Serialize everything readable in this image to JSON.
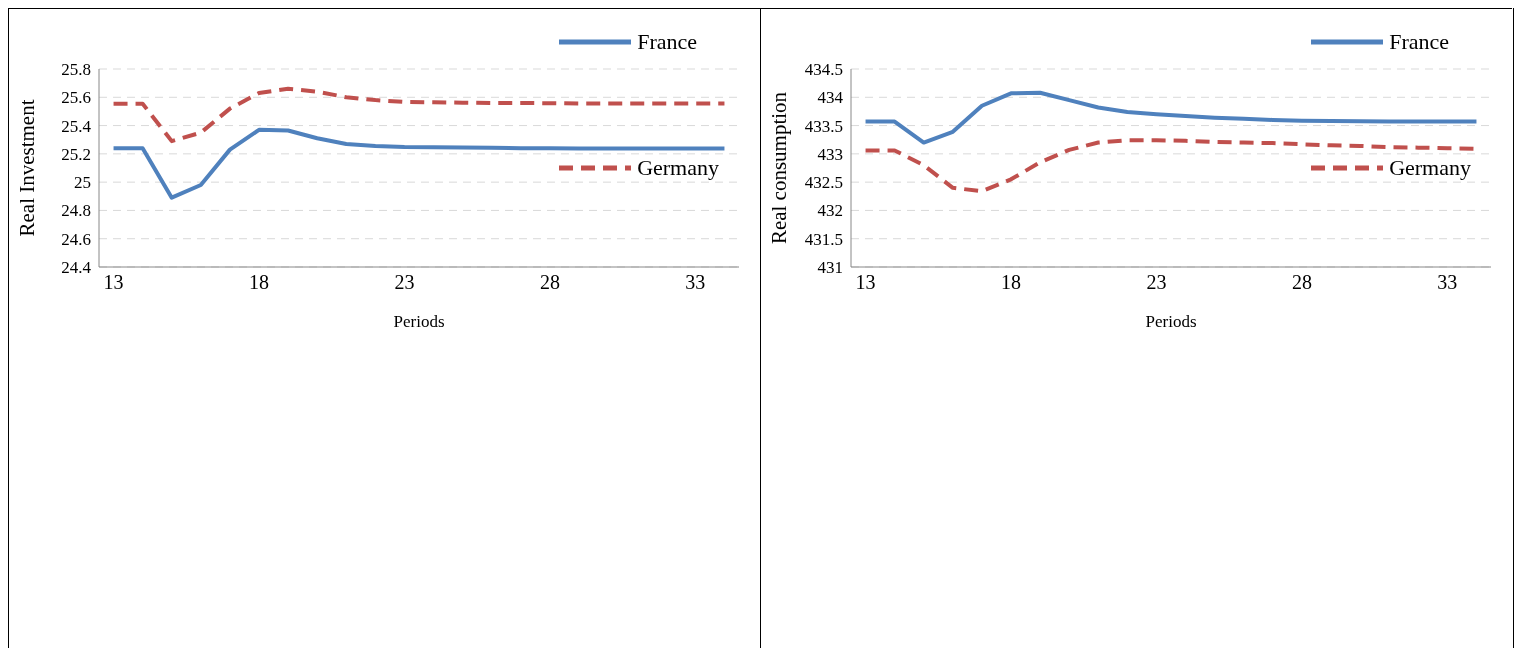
{
  "chart_data": [
    {
      "type": "line",
      "xlabel": "Periods",
      "ylabel": "Real Investment",
      "x": [
        13,
        14,
        15,
        16,
        17,
        18,
        19,
        20,
        21,
        22,
        23,
        24,
        25,
        26,
        27,
        28,
        29,
        30,
        31,
        32,
        33,
        34
      ],
      "xlim": [
        12.5,
        34.5
      ],
      "xticks": [
        13,
        18,
        23,
        28,
        33
      ],
      "ylim": [
        24.4,
        25.8
      ],
      "yticks": [
        24.4,
        24.6,
        24.8,
        25,
        25.2,
        25.4,
        25.6,
        25.8
      ],
      "grid": "y",
      "legend": "right",
      "marker": "none",
      "series": [
        {
          "name": "France",
          "color": "#4f81bd",
          "line_style": "solid",
          "values": [
            25.24,
            25.24,
            24.89,
            24.98,
            25.23,
            25.37,
            25.365,
            25.31,
            25.27,
            25.255,
            25.248,
            25.247,
            25.245,
            25.243,
            25.24,
            25.24,
            25.237,
            25.237,
            25.237,
            25.237,
            25.237,
            25.237
          ]
        },
        {
          "name": "Germany",
          "color": "#c0504d",
          "line_style": "dashed",
          "values": [
            25.555,
            25.555,
            25.29,
            25.35,
            25.52,
            25.63,
            25.66,
            25.64,
            25.6,
            25.58,
            25.567,
            25.565,
            25.562,
            25.56,
            25.56,
            25.558,
            25.556,
            25.556,
            25.556,
            25.556,
            25.556,
            25.556
          ]
        }
      ]
    },
    {
      "type": "line",
      "xlabel": "Periods",
      "ylabel": "Real consumption",
      "x": [
        13,
        14,
        15,
        16,
        17,
        18,
        19,
        20,
        21,
        22,
        23,
        24,
        25,
        26,
        27,
        28,
        29,
        30,
        31,
        32,
        33,
        34
      ],
      "xlim": [
        12.5,
        34.5
      ],
      "xticks": [
        13,
        18,
        23,
        28,
        33
      ],
      "ylim": [
        431,
        434.5
      ],
      "yticks": [
        431,
        431.5,
        432,
        432.5,
        433,
        433.5,
        434,
        434.5
      ],
      "grid": "y",
      "legend": "right",
      "marker": "none",
      "series": [
        {
          "name": "France",
          "color": "#4f81bd",
          "line_style": "solid",
          "values": [
            433.57,
            433.57,
            433.2,
            433.39,
            433.85,
            434.07,
            434.08,
            433.95,
            433.82,
            433.74,
            433.7,
            433.67,
            433.64,
            433.62,
            433.6,
            433.585,
            433.58,
            433.575,
            433.57,
            433.57,
            433.57,
            433.57
          ]
        },
        {
          "name": "Germany",
          "color": "#c0504d",
          "line_style": "dashed",
          "values": [
            433.06,
            433.06,
            432.8,
            432.4,
            432.34,
            432.55,
            432.85,
            433.07,
            433.2,
            433.24,
            433.24,
            433.23,
            433.21,
            433.2,
            433.19,
            433.17,
            433.15,
            433.14,
            433.12,
            433.11,
            433.1,
            433.09
          ]
        }
      ]
    }
  ]
}
